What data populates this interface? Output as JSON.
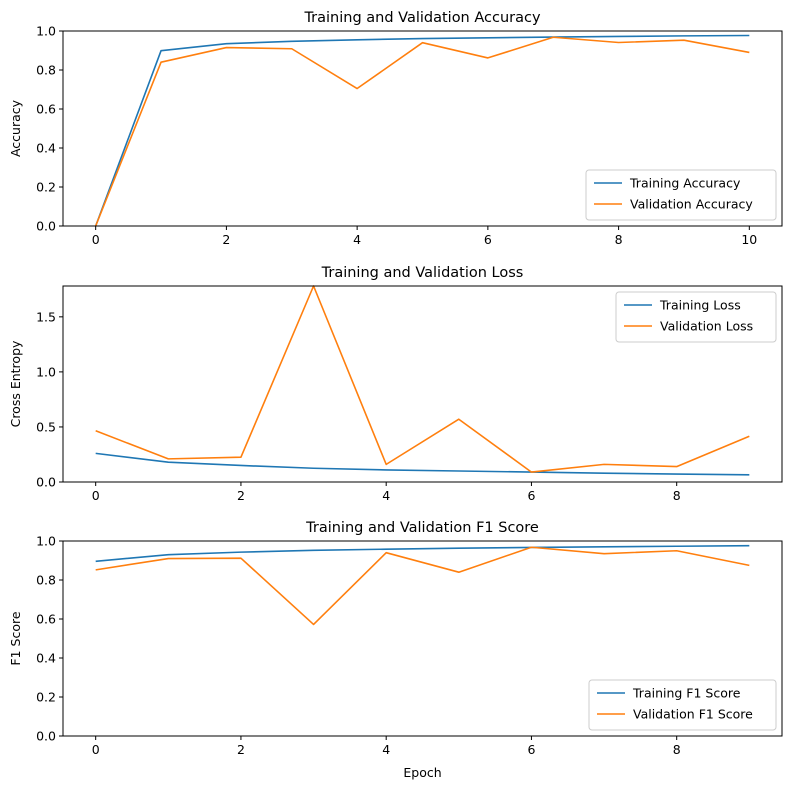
{
  "chart_data": [
    {
      "type": "line",
      "title": "Training and Validation Accuracy",
      "xlabel": "",
      "ylabel": "Accuracy",
      "xlim": [
        -0.5,
        10.5
      ],
      "ylim": [
        0,
        1
      ],
      "xticks": [
        0,
        2,
        4,
        6,
        8,
        10
      ],
      "yticks": [
        0.0,
        0.2,
        0.4,
        0.6,
        0.8,
        1.0
      ],
      "legend_position": "lower-right",
      "x": [
        0,
        1,
        2,
        3,
        4,
        5,
        6,
        7,
        8,
        9,
        10
      ],
      "series": [
        {
          "name": "Training Accuracy",
          "color": "#1f77b4",
          "values": [
            0.0,
            0.899,
            0.935,
            0.947,
            0.955,
            0.961,
            0.965,
            0.969,
            0.972,
            0.975,
            0.977
          ]
        },
        {
          "name": "Validation Accuracy",
          "color": "#ff7f0e",
          "values": [
            0.0,
            0.84,
            0.915,
            0.909,
            0.705,
            0.94,
            0.862,
            0.968,
            0.941,
            0.953,
            0.89
          ]
        }
      ]
    },
    {
      "type": "line",
      "title": "Training and Validation Loss",
      "xlabel": "",
      "ylabel": "Cross Entropy",
      "xlim": [
        -0.45,
        9.45
      ],
      "ylim": [
        0,
        1.78
      ],
      "xticks": [
        0,
        2,
        4,
        6,
        8
      ],
      "yticks": [
        0.0,
        0.5,
        1.0,
        1.5
      ],
      "legend_position": "upper-right",
      "x": [
        0,
        1,
        2,
        3,
        4,
        5,
        6,
        7,
        8,
        9
      ],
      "series": [
        {
          "name": "Training Loss",
          "color": "#1f77b4",
          "values": [
            0.26,
            0.18,
            0.15,
            0.125,
            0.11,
            0.1,
            0.09,
            0.08,
            0.072,
            0.065
          ]
        },
        {
          "name": "Validation Loss",
          "color": "#ff7f0e",
          "values": [
            0.465,
            0.21,
            0.225,
            1.78,
            0.16,
            0.57,
            0.09,
            0.16,
            0.14,
            0.415
          ]
        }
      ]
    },
    {
      "type": "line",
      "title": "Training and Validation F1 Score",
      "xlabel": "Epoch",
      "ylabel": "F1 Score",
      "xlim": [
        -0.45,
        9.45
      ],
      "ylim": [
        0,
        1
      ],
      "xticks": [
        0,
        2,
        4,
        6,
        8
      ],
      "yticks": [
        0.0,
        0.2,
        0.4,
        0.6,
        0.8,
        1.0
      ],
      "legend_position": "lower-right",
      "x": [
        0,
        1,
        2,
        3,
        4,
        5,
        6,
        7,
        8,
        9
      ],
      "series": [
        {
          "name": "Training F1 Score",
          "color": "#1f77b4",
          "values": [
            0.896,
            0.93,
            0.943,
            0.952,
            0.958,
            0.963,
            0.967,
            0.97,
            0.973,
            0.976
          ]
        },
        {
          "name": "Validation F1 Score",
          "color": "#ff7f0e",
          "values": [
            0.852,
            0.91,
            0.912,
            0.572,
            0.94,
            0.84,
            0.968,
            0.935,
            0.95,
            0.875
          ]
        }
      ]
    }
  ]
}
